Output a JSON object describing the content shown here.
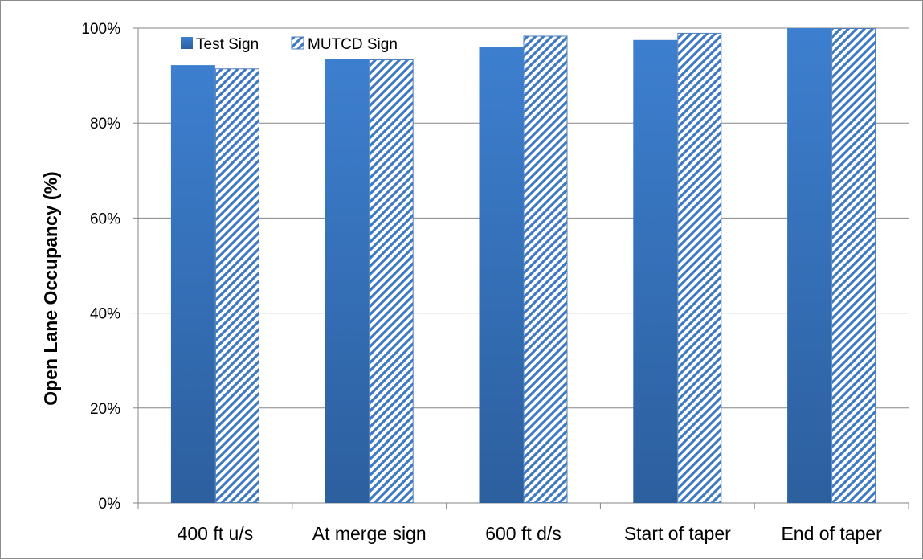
{
  "chart_data": {
    "type": "bar",
    "categories": [
      "400 ft u/s",
      "At merge sign",
      "600 ft d/s",
      "Start of taper",
      "End of taper"
    ],
    "series": [
      {
        "name": "Test Sign",
        "values": [
          92.2,
          93.5,
          96.0,
          97.5,
          100.0
        ],
        "style": "solid-gradient"
      },
      {
        "name": "MUTCD Sign",
        "values": [
          91.5,
          93.4,
          98.4,
          99.0,
          100.0
        ],
        "style": "diagonal-hatch"
      }
    ],
    "xlabel": "",
    "ylabel": "Open Lane Occupancy (%)",
    "ylim": [
      0,
      100
    ],
    "yticks": [
      "0%",
      "20%",
      "40%",
      "60%",
      "80%",
      "100%"
    ],
    "grid": "horizontal",
    "legend": "top-left",
    "colors": {
      "bar_top": "#3d7fcf",
      "bar_bottom": "#2c5f9e",
      "hatch": "#3c78c4",
      "hatch_border": "#4f81bd",
      "grid": "#868686"
    }
  }
}
